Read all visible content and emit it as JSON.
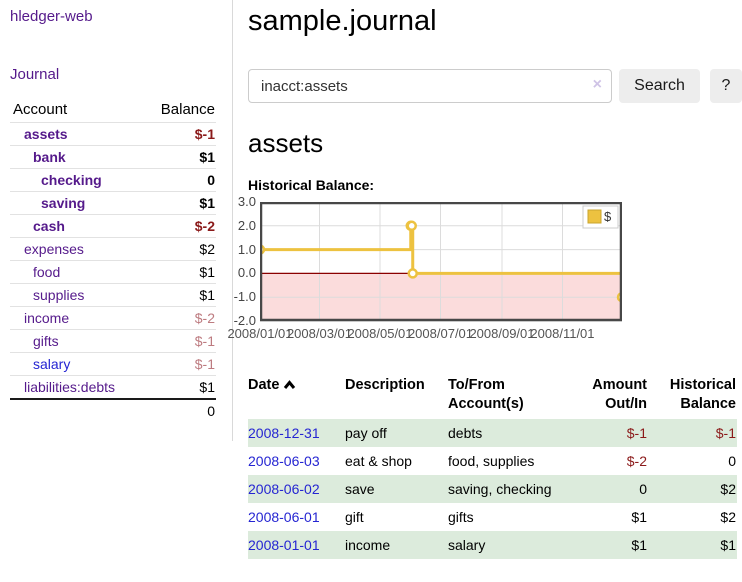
{
  "app": {
    "title": "hledger-web",
    "nav_journal": "Journal"
  },
  "colors": {
    "brand_purple": "#551a8b",
    "link_blue": "#2525d2",
    "negative_red": "#8b1a1a",
    "negative_muted": "#bd7b80",
    "stripe_green": "#dcebdc",
    "chart_yellow": "#edc240"
  },
  "sidebar": {
    "columns": {
      "account": "Account",
      "balance": "Balance"
    },
    "accounts": [
      {
        "name": "assets",
        "balance": "$-1"
      },
      {
        "name": "bank",
        "balance": "$1"
      },
      {
        "name": "checking",
        "balance": "0"
      },
      {
        "name": "saving",
        "balance": "$1"
      },
      {
        "name": "cash",
        "balance": "$-2"
      },
      {
        "name": "expenses",
        "balance": "$2"
      },
      {
        "name": "food",
        "balance": "$1"
      },
      {
        "name": "supplies",
        "balance": "$1"
      },
      {
        "name": "income",
        "balance": "$-2"
      },
      {
        "name": "gifts",
        "balance": "$-1"
      },
      {
        "name": "salary",
        "balance": "$-1"
      },
      {
        "name": "liabilities:debts",
        "balance": "$1"
      }
    ],
    "total": "0"
  },
  "main": {
    "title": "sample.journal",
    "search": {
      "value": "inacct:assets",
      "clear_icon": "×",
      "button_label": "Search",
      "help_label": "?"
    },
    "account_heading": "assets",
    "chart_label": "Historical Balance:"
  },
  "chart_data": {
    "type": "line",
    "title": "Historical Balance",
    "step": true,
    "series": [
      {
        "name": "$",
        "points": [
          [
            "2008-01-01",
            1
          ],
          [
            "2008-06-01",
            2
          ],
          [
            "2008-06-02",
            2
          ],
          [
            "2008-06-03",
            0
          ],
          [
            "2008-12-31",
            -1
          ]
        ]
      }
    ],
    "x_range": [
      "2008-01-01",
      "2008-12-31"
    ],
    "x_ticks": [
      "2008/01/01",
      "2008/03/01",
      "2008/05/01",
      "2008/07/01",
      "2008/09/01",
      "2008/11/01"
    ],
    "y_ticks": [
      "3.0",
      "2.0",
      "1.0",
      "0.0",
      "-1.0",
      "-2.0"
    ],
    "ylim": [
      -2,
      3
    ],
    "grid": true,
    "legend_position": "top-right",
    "series_color": "#edc240",
    "negative_region_color": "#fbdcdc",
    "zero_line_color": "#8b0000"
  },
  "journal": {
    "headers": {
      "date": "Date",
      "description": "Description",
      "account": "To/From Account(s)",
      "amount": "Amount Out/In",
      "balance": "Historical Balance"
    },
    "rows": [
      {
        "date": "2008-12-31",
        "description": "pay off",
        "accounts": "debts",
        "amount": "$-1",
        "balance": "$-1"
      },
      {
        "date": "2008-06-03",
        "description": "eat & shop",
        "accounts": "food, supplies",
        "amount": "$-2",
        "balance": "0"
      },
      {
        "date": "2008-06-02",
        "description": "save",
        "accounts": "saving, checking",
        "amount": "0",
        "balance": "$2"
      },
      {
        "date": "2008-06-01",
        "description": "gift",
        "accounts": "gifts",
        "amount": "$1",
        "balance": "$2"
      },
      {
        "date": "2008-01-01",
        "description": "income",
        "accounts": "salary",
        "amount": "$1",
        "balance": "$1"
      }
    ]
  }
}
